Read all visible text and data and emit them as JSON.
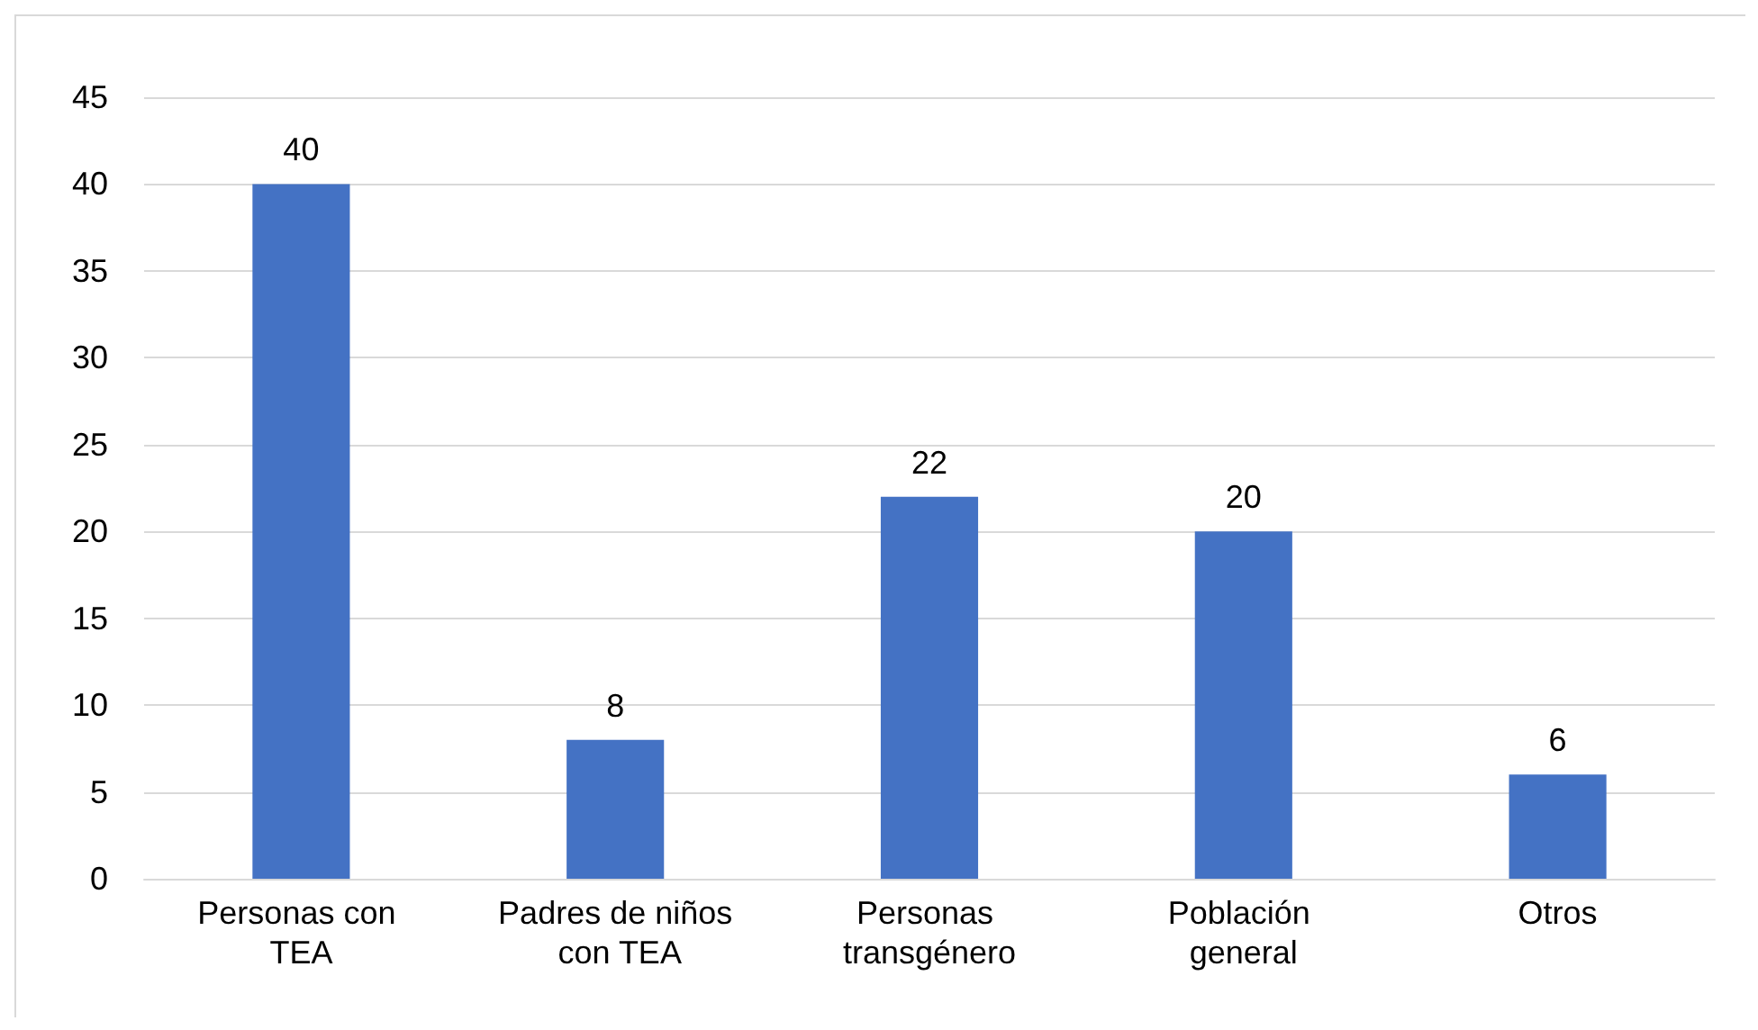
{
  "chart_data": {
    "type": "bar",
    "categories": [
      "Personas con TEA",
      "Padres de niños con TEA",
      "Personas transgénero",
      "Población general",
      "Otros"
    ],
    "values": [
      40,
      8,
      22,
      20,
      6
    ],
    "color": "#4472c4",
    "ylim": [
      0,
      45
    ],
    "yticks": [
      0,
      5,
      10,
      15,
      20,
      25,
      30,
      35,
      40,
      45
    ],
    "grid": "y",
    "data_labels": true
  }
}
